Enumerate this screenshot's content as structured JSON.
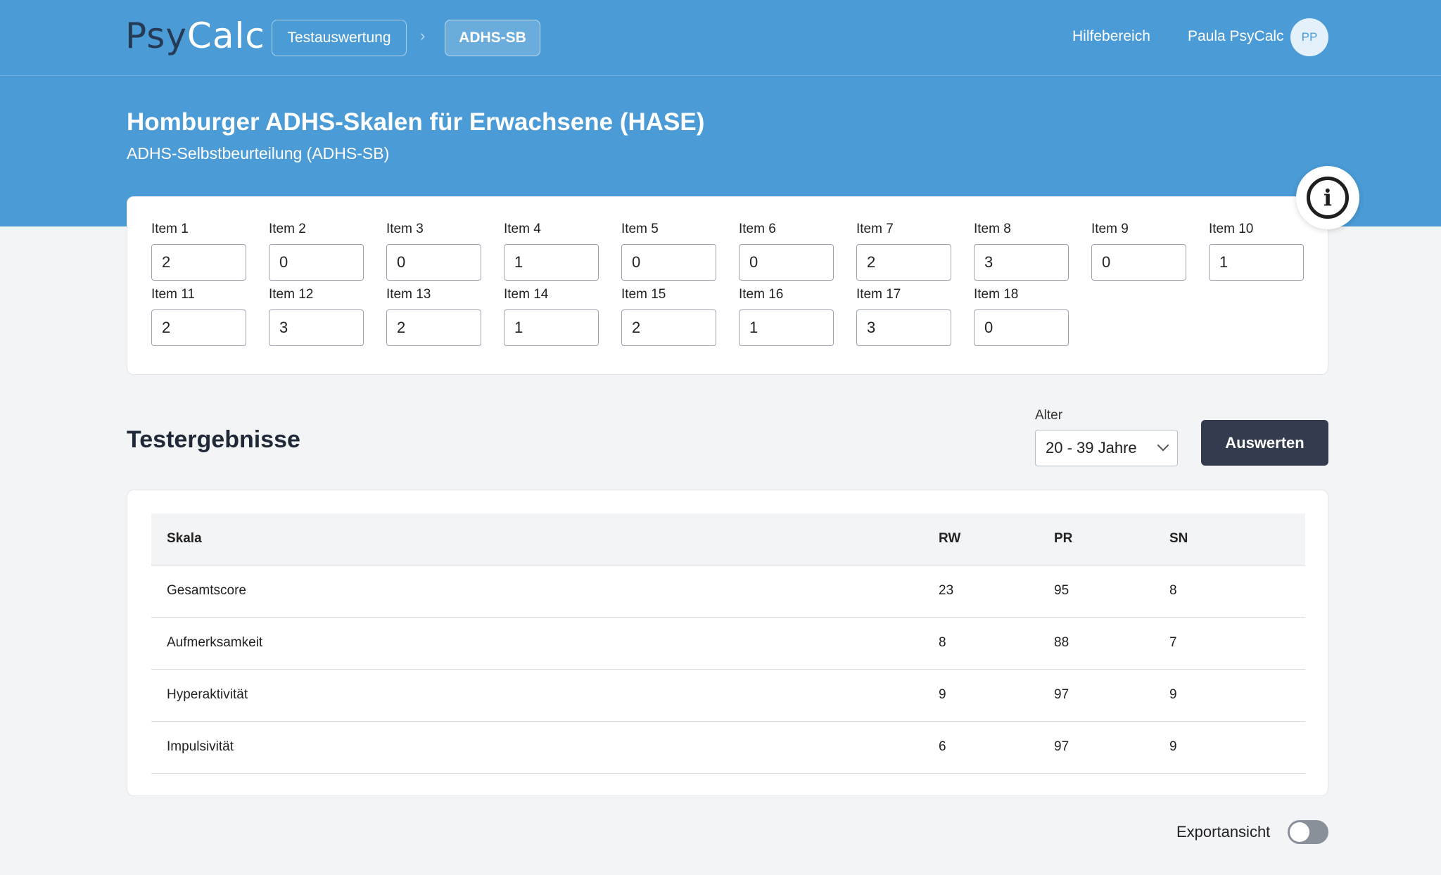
{
  "header": {
    "logo_part1": "Psy",
    "logo_part2": "Calc",
    "breadcrumbs": [
      "Testauswertung",
      "ADHS-SB"
    ],
    "breadcrumb_separator": "›",
    "help_label": "Hilfebereich",
    "user_name": "Paula PsyCalc",
    "user_initials": "PP"
  },
  "page": {
    "title": "Homburger ADHS-Skalen für Erwachsene (HASE)",
    "subtitle": "ADHS-Selbstbeurteilung (ADHS-SB)"
  },
  "items": [
    {
      "label": "Item 1",
      "value": "2"
    },
    {
      "label": "Item 2",
      "value": "0"
    },
    {
      "label": "Item 3",
      "value": "0"
    },
    {
      "label": "Item 4",
      "value": "1"
    },
    {
      "label": "Item 5",
      "value": "0"
    },
    {
      "label": "Item 6",
      "value": "0"
    },
    {
      "label": "Item 7",
      "value": "2"
    },
    {
      "label": "Item 8",
      "value": "3"
    },
    {
      "label": "Item 9",
      "value": "0"
    },
    {
      "label": "Item 10",
      "value": "1"
    },
    {
      "label": "Item 11",
      "value": "2"
    },
    {
      "label": "Item 12",
      "value": "3"
    },
    {
      "label": "Item 13",
      "value": "2"
    },
    {
      "label": "Item 14",
      "value": "1"
    },
    {
      "label": "Item 15",
      "value": "2"
    },
    {
      "label": "Item 16",
      "value": "1"
    },
    {
      "label": "Item 17",
      "value": "3"
    },
    {
      "label": "Item 18",
      "value": "0"
    }
  ],
  "results": {
    "title": "Testergebnisse",
    "age_label": "Alter",
    "age_value": "20 - 39 Jahre",
    "evaluate_label": "Auswerten",
    "columns": [
      "Skala",
      "RW",
      "PR",
      "SN"
    ],
    "rows": [
      [
        "Gesamtscore",
        "23",
        "95",
        "8"
      ],
      [
        "Aufmerksamkeit",
        "8",
        "88",
        "7"
      ],
      [
        "Hyperaktivität",
        "9",
        "97",
        "9"
      ],
      [
        "Impulsivität",
        "6",
        "97",
        "9"
      ]
    ]
  },
  "export": {
    "label": "Exportansicht",
    "enabled": false
  },
  "colors": {
    "header_blue": "#4a9bd6",
    "button_dark": "#323c4e",
    "page_background": "#f3f4f6"
  }
}
